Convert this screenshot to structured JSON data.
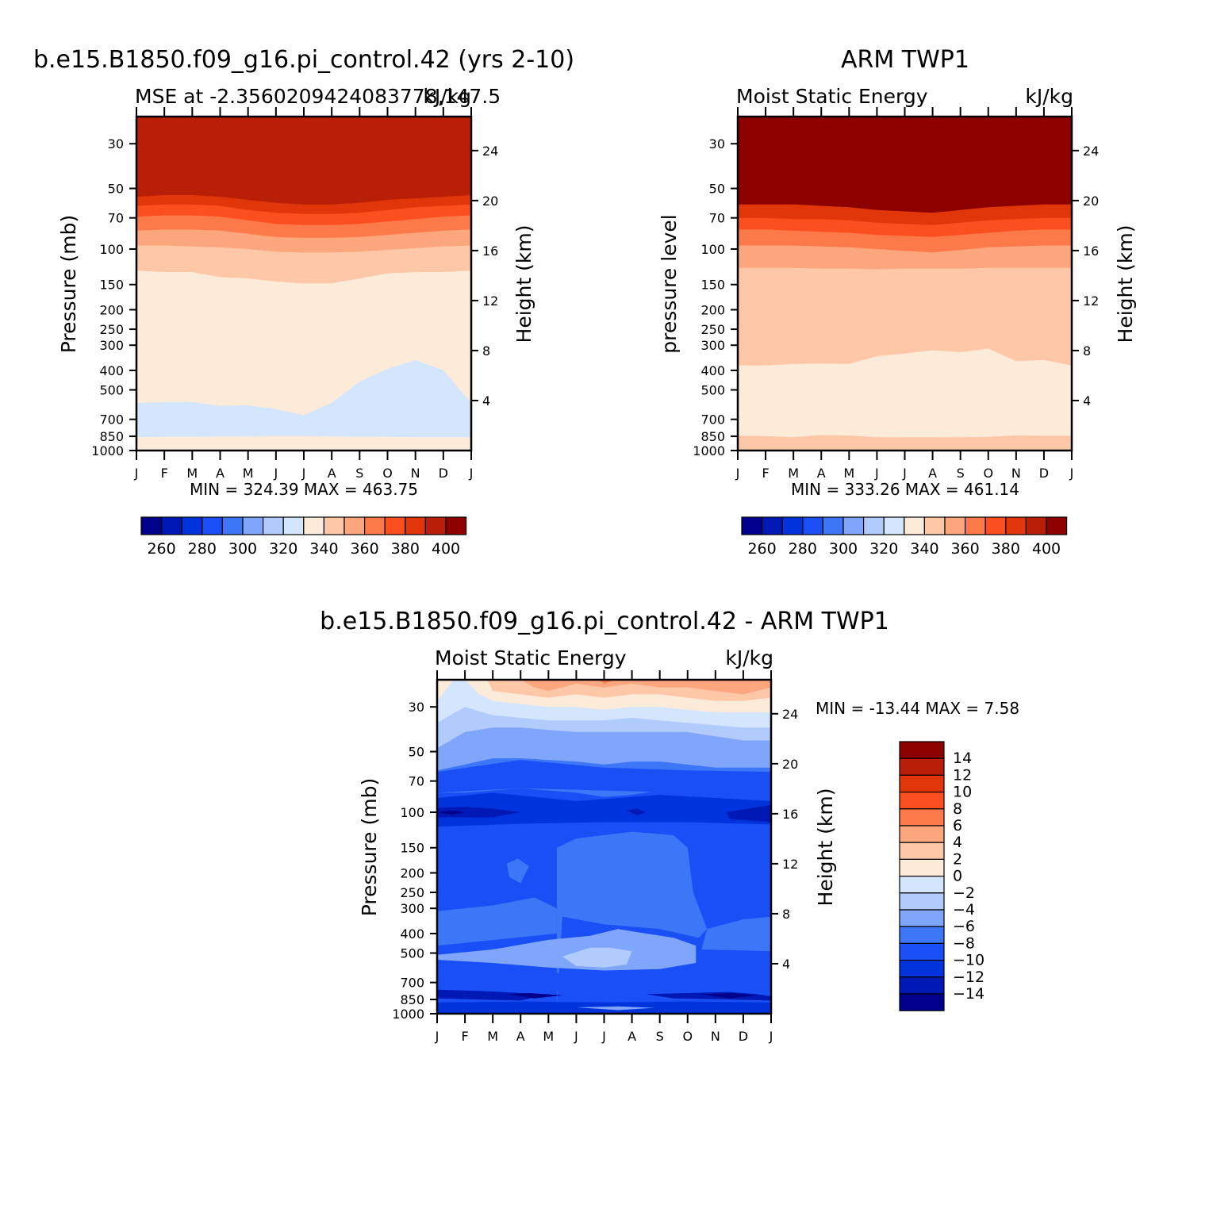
{
  "palette": {
    "mse": [
      "#00008c",
      "#0019b4",
      "#0033dc",
      "#1a4ff5",
      "#3d76f7",
      "#7fa6fa",
      "#b2cbfd",
      "#d4e6fd",
      "#fdebd9",
      "#fdc7a8",
      "#fba67c",
      "#fc7a4a",
      "#fb4f1f",
      "#e0360a",
      "#b91f06",
      "#8c0000"
    ],
    "diff": [
      "#00008c",
      "#0019b4",
      "#0033dc",
      "#1a4ff5",
      "#3d76f7",
      "#7fa6fa",
      "#b2cbfd",
      "#d4e6fd",
      "#fdebd9",
      "#fdc7a8",
      "#fba67c",
      "#fc7a4a",
      "#fb4f1f",
      "#e0360a",
      "#b91f06",
      "#8c0000"
    ]
  },
  "chart_data": [
    {
      "id": "model",
      "type": "heatmap",
      "title": "b.e15.B1850.f09_g16.pi_control.42 (yrs 2-10)",
      "subtitle_left": "MSE at -2.3560209424083778,147.5",
      "subtitle_right": "kJ/kg",
      "ylabel": "Pressure (mb)",
      "ylabel_right": "Height (km)",
      "min_label": "MIN = 324.39 MAX = 463.75",
      "x": [
        "J",
        "F",
        "M",
        "A",
        "M",
        "J",
        "J",
        "A",
        "S",
        "O",
        "N",
        "D",
        "J"
      ],
      "pressure_ticks": [
        "30",
        "50",
        "70",
        "100",
        "150",
        "200",
        "250",
        "300",
        "400",
        "500",
        "700",
        "850",
        "1000"
      ],
      "height_ticks": [
        "24",
        "20",
        "16",
        "12",
        "8",
        "4"
      ],
      "ylim": [
        1000,
        22
      ],
      "boundaries": [
        {
          "level": 332,
          "p": [
            858,
            856,
            856,
            852,
            850,
            846,
            846,
            852,
            854,
            856,
            858,
            858,
            858
          ]
        },
        {
          "level": 340,
          "p": [
            580,
            575,
            573,
            600,
            596,
            622,
            666,
            580,
            455,
            393,
            355,
            400,
            580
          ]
        },
        {
          "level": 350,
          "p": [
            128,
            130,
            130,
            138,
            140,
            145,
            148,
            148,
            140,
            132,
            130,
            130,
            128
          ]
        },
        {
          "level": 360,
          "p": [
            96,
            96,
            97,
            98,
            100,
            103,
            104,
            104,
            103,
            101,
            99,
            97,
            96
          ]
        },
        {
          "level": 370,
          "p": [
            81,
            80,
            80,
            81,
            84,
            87,
            88,
            88,
            87,
            85,
            83,
            81,
            80
          ]
        },
        {
          "level": 380,
          "p": [
            69,
            68,
            68,
            69,
            72,
            75,
            76,
            76,
            75,
            73,
            71,
            69,
            68
          ]
        },
        {
          "level": 390,
          "p": [
            61,
            60,
            60,
            61,
            64,
            66,
            67,
            67,
            66,
            64,
            62,
            61,
            60
          ]
        },
        {
          "level": 400,
          "p": [
            55,
            54,
            54,
            55,
            57,
            59,
            60,
            60,
            59,
            57,
            56,
            55,
            54
          ]
        }
      ]
    },
    {
      "id": "obs",
      "type": "heatmap",
      "title": "ARM TWP1",
      "subtitle_left": "Moist Static Energy",
      "subtitle_right": "kJ/kg",
      "ylabel": "pressure level",
      "ylabel_right": "Height (km)",
      "min_label": "MIN = 333.26 MAX = 461.14",
      "x": [
        "J",
        "F",
        "M",
        "A",
        "M",
        "J",
        "J",
        "A",
        "S",
        "O",
        "N",
        "D",
        "J"
      ],
      "pressure_ticks": [
        "30",
        "50",
        "70",
        "100",
        "150",
        "200",
        "250",
        "300",
        "400",
        "500",
        "700",
        "850",
        "1000"
      ],
      "height_ticks": [
        "24",
        "20",
        "16",
        "12",
        "8",
        "4"
      ],
      "ylim": [
        1000,
        22
      ],
      "boundaries": [
        {
          "level": 340,
          "p": [
            845,
            848,
            858,
            838,
            842,
            858,
            860,
            860,
            858,
            855,
            842,
            845,
            845
          ]
        },
        {
          "level": 350,
          "p": [
            378,
            378,
            372,
            370,
            372,
            340,
            330,
            318,
            325,
            312,
            360,
            355,
            378
          ]
        },
        {
          "level": 360,
          "p": [
            124,
            124,
            124,
            125,
            125,
            126,
            125,
            125,
            125,
            124,
            124,
            124,
            124
          ]
        },
        {
          "level": 370,
          "p": [
            96,
            96,
            96,
            97,
            98,
            100,
            102,
            104,
            101,
            98,
            97,
            96,
            96
          ]
        },
        {
          "level": 380,
          "p": [
            80,
            80,
            81,
            82,
            83,
            85,
            86,
            87,
            85,
            83,
            81,
            80,
            80
          ]
        },
        {
          "level": 390,
          "p": [
            70,
            70,
            71,
            71,
            72,
            74,
            75,
            76,
            74,
            72,
            71,
            70,
            70
          ]
        },
        {
          "level": 400,
          "p": [
            60,
            60,
            60,
            61,
            62,
            64,
            65,
            66,
            64,
            62,
            61,
            60,
            60
          ]
        }
      ]
    },
    {
      "id": "diff",
      "type": "heatmap",
      "title": "b.e15.B1850.f09_g16.pi_control.42 - ARM TWP1",
      "subtitle_left": "Moist Static Energy",
      "subtitle_right": "kJ/kg",
      "ylabel": "Pressure (mb)",
      "ylabel_right": "Height (km)",
      "min_label": "MIN = -13.44 MAX = 7.58",
      "x": [
        "J",
        "F",
        "M",
        "A",
        "M",
        "J",
        "J",
        "A",
        "S",
        "O",
        "N",
        "D",
        "J"
      ],
      "pressure_ticks": [
        "30",
        "50",
        "70",
        "100",
        "150",
        "200",
        "250",
        "300",
        "400",
        "500",
        "700",
        "850",
        "1000"
      ],
      "height_ticks": [
        "24",
        "20",
        "16",
        "12",
        "8",
        "4"
      ],
      "ylim": [
        1000,
        22
      ],
      "colorbar_ticks": [
        "14",
        "12",
        "10",
        "8",
        "6",
        "4",
        "2",
        "0",
        "−2",
        "−4",
        "−6",
        "−8",
        "−10",
        "−12",
        "−14"
      ]
    }
  ],
  "colorbar_mse": {
    "ticks": [
      "260",
      "280",
      "300",
      "320",
      "340",
      "360",
      "380",
      "400"
    ]
  }
}
